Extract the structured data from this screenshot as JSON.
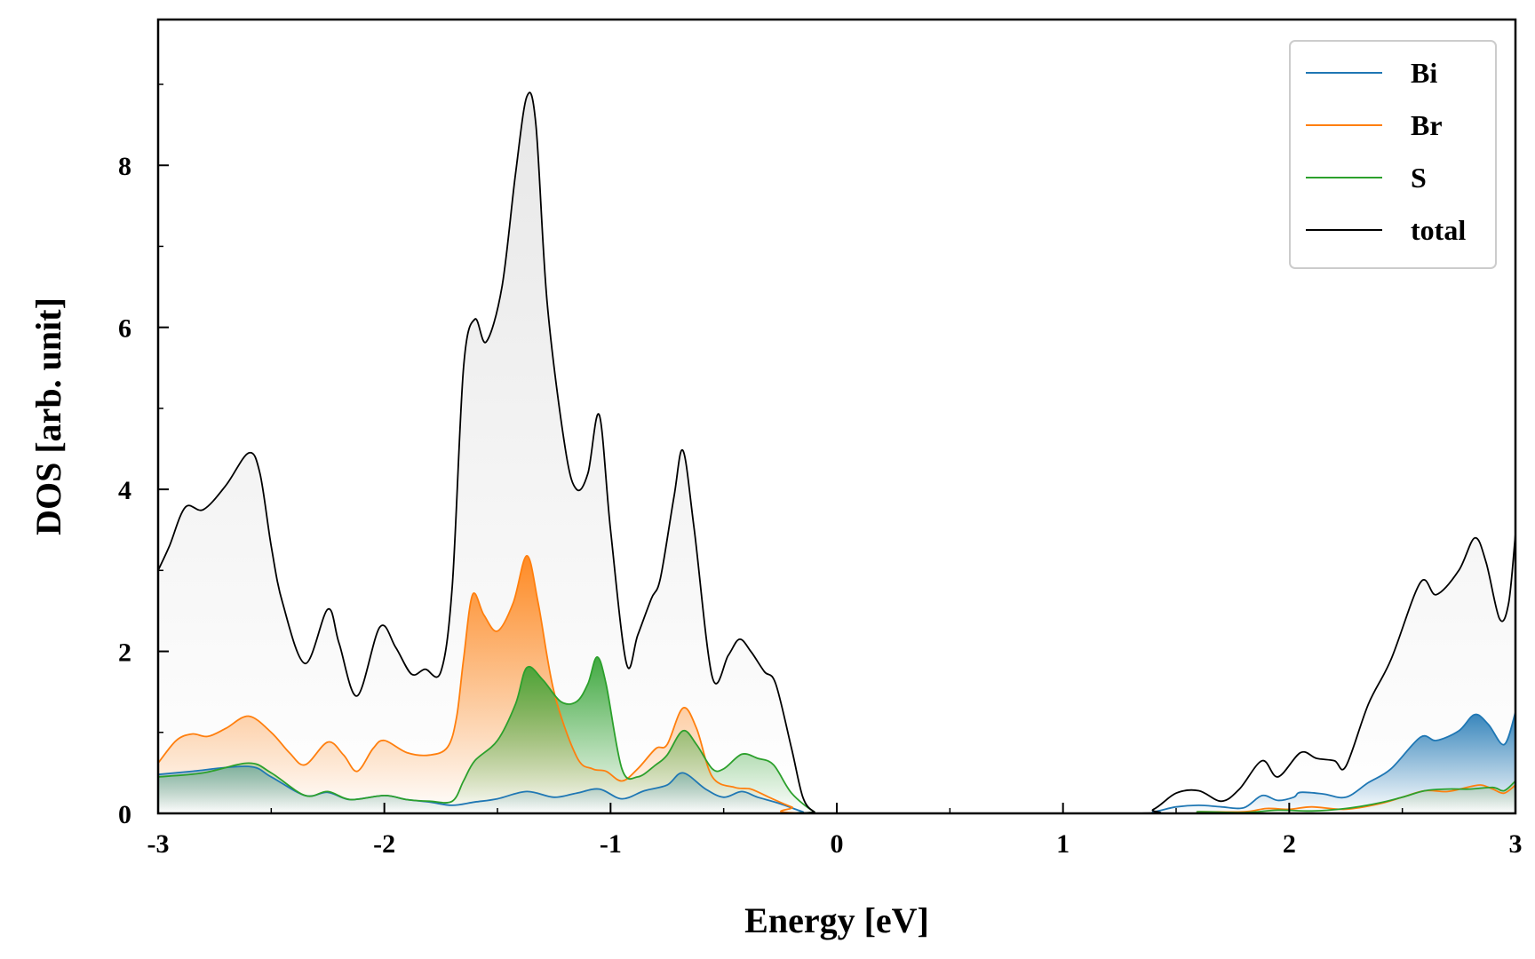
{
  "chart_data": {
    "type": "line",
    "title": "",
    "xlabel": "Energy [eV]",
    "ylabel": "DOS [arb. unit]",
    "xlim": [
      -3,
      3
    ],
    "ylim": [
      0,
      9.8
    ],
    "xticks": [
      -3,
      -2,
      -1,
      0,
      1,
      2,
      3
    ],
    "yticks": [
      0,
      2,
      4,
      6,
      8
    ],
    "grid": false,
    "legend_position": "top-right",
    "filled": true,
    "series": [
      {
        "name": "Bi",
        "color": "#1f77b4",
        "points": [
          [
            -3.0,
            0.48
          ],
          [
            -2.85,
            0.52
          ],
          [
            -2.6,
            0.58
          ],
          [
            -2.5,
            0.45
          ],
          [
            -2.35,
            0.22
          ],
          [
            -2.25,
            0.26
          ],
          [
            -2.15,
            0.17
          ],
          [
            -2.0,
            0.22
          ],
          [
            -1.9,
            0.17
          ],
          [
            -1.8,
            0.14
          ],
          [
            -1.7,
            0.1
          ],
          [
            -1.6,
            0.14
          ],
          [
            -1.5,
            0.18
          ],
          [
            -1.37,
            0.27
          ],
          [
            -1.25,
            0.2
          ],
          [
            -1.15,
            0.25
          ],
          [
            -1.05,
            0.3
          ],
          [
            -0.95,
            0.18
          ],
          [
            -0.85,
            0.28
          ],
          [
            -0.75,
            0.35
          ],
          [
            -0.68,
            0.5
          ],
          [
            -0.58,
            0.3
          ],
          [
            -0.5,
            0.2
          ],
          [
            -0.42,
            0.27
          ],
          [
            -0.35,
            0.2
          ],
          [
            -0.25,
            0.12
          ],
          [
            -0.15,
            0.02
          ],
          [
            -0.1,
            0.0
          ],
          [
            1.3,
            0.0
          ],
          [
            1.4,
            0.02
          ],
          [
            1.5,
            0.08
          ],
          [
            1.6,
            0.1
          ],
          [
            1.7,
            0.08
          ],
          [
            1.8,
            0.07
          ],
          [
            1.88,
            0.22
          ],
          [
            1.95,
            0.16
          ],
          [
            2.02,
            0.2
          ],
          [
            2.05,
            0.26
          ],
          [
            2.15,
            0.24
          ],
          [
            2.25,
            0.2
          ],
          [
            2.35,
            0.38
          ],
          [
            2.45,
            0.55
          ],
          [
            2.58,
            0.94
          ],
          [
            2.65,
            0.9
          ],
          [
            2.75,
            1.02
          ],
          [
            2.82,
            1.22
          ],
          [
            2.88,
            1.1
          ],
          [
            2.95,
            0.85
          ],
          [
            3.0,
            1.25
          ]
        ]
      },
      {
        "name": "Br",
        "color": "#ff7f0e",
        "points": [
          [
            -3.0,
            0.62
          ],
          [
            -2.92,
            0.9
          ],
          [
            -2.85,
            0.98
          ],
          [
            -2.78,
            0.95
          ],
          [
            -2.7,
            1.05
          ],
          [
            -2.6,
            1.2
          ],
          [
            -2.5,
            1.0
          ],
          [
            -2.42,
            0.75
          ],
          [
            -2.35,
            0.6
          ],
          [
            -2.25,
            0.88
          ],
          [
            -2.18,
            0.72
          ],
          [
            -2.12,
            0.52
          ],
          [
            -2.05,
            0.8
          ],
          [
            -2.0,
            0.9
          ],
          [
            -1.9,
            0.75
          ],
          [
            -1.8,
            0.72
          ],
          [
            -1.72,
            0.82
          ],
          [
            -1.68,
            1.2
          ],
          [
            -1.65,
            1.9
          ],
          [
            -1.61,
            2.7
          ],
          [
            -1.56,
            2.45
          ],
          [
            -1.5,
            2.25
          ],
          [
            -1.43,
            2.6
          ],
          [
            -1.37,
            3.18
          ],
          [
            -1.32,
            2.6
          ],
          [
            -1.25,
            1.5
          ],
          [
            -1.15,
            0.7
          ],
          [
            -1.08,
            0.55
          ],
          [
            -1.02,
            0.52
          ],
          [
            -0.95,
            0.4
          ],
          [
            -0.88,
            0.55
          ],
          [
            -0.8,
            0.8
          ],
          [
            -0.75,
            0.85
          ],
          [
            -0.68,
            1.3
          ],
          [
            -0.62,
            1.05
          ],
          [
            -0.55,
            0.45
          ],
          [
            -0.45,
            0.32
          ],
          [
            -0.38,
            0.3
          ],
          [
            -0.3,
            0.2
          ],
          [
            -0.2,
            0.08
          ],
          [
            -0.1,
            0.0
          ],
          [
            1.5,
            0.0
          ],
          [
            1.6,
            0.02
          ],
          [
            1.8,
            0.02
          ],
          [
            1.9,
            0.06
          ],
          [
            2.0,
            0.05
          ],
          [
            2.1,
            0.08
          ],
          [
            2.25,
            0.05
          ],
          [
            2.4,
            0.12
          ],
          [
            2.5,
            0.2
          ],
          [
            2.6,
            0.28
          ],
          [
            2.7,
            0.27
          ],
          [
            2.8,
            0.33
          ],
          [
            2.85,
            0.35
          ],
          [
            2.9,
            0.3
          ],
          [
            2.95,
            0.25
          ],
          [
            3.0,
            0.35
          ]
        ]
      },
      {
        "name": "S",
        "color": "#2ca02c",
        "points": [
          [
            -3.0,
            0.45
          ],
          [
            -2.8,
            0.5
          ],
          [
            -2.6,
            0.62
          ],
          [
            -2.5,
            0.5
          ],
          [
            -2.35,
            0.22
          ],
          [
            -2.25,
            0.27
          ],
          [
            -2.15,
            0.17
          ],
          [
            -2.0,
            0.22
          ],
          [
            -1.9,
            0.17
          ],
          [
            -1.8,
            0.15
          ],
          [
            -1.7,
            0.15
          ],
          [
            -1.65,
            0.4
          ],
          [
            -1.6,
            0.65
          ],
          [
            -1.5,
            0.9
          ],
          [
            -1.42,
            1.35
          ],
          [
            -1.37,
            1.8
          ],
          [
            -1.3,
            1.65
          ],
          [
            -1.22,
            1.38
          ],
          [
            -1.15,
            1.38
          ],
          [
            -1.1,
            1.6
          ],
          [
            -1.06,
            1.93
          ],
          [
            -1.02,
            1.6
          ],
          [
            -0.95,
            0.55
          ],
          [
            -0.88,
            0.45
          ],
          [
            -0.8,
            0.6
          ],
          [
            -0.75,
            0.72
          ],
          [
            -0.68,
            1.02
          ],
          [
            -0.62,
            0.85
          ],
          [
            -0.55,
            0.55
          ],
          [
            -0.5,
            0.55
          ],
          [
            -0.42,
            0.73
          ],
          [
            -0.35,
            0.68
          ],
          [
            -0.28,
            0.6
          ],
          [
            -0.2,
            0.25
          ],
          [
            -0.1,
            0.02
          ],
          [
            -0.05,
            0.0
          ],
          [
            1.5,
            0.0
          ],
          [
            1.6,
            0.02
          ],
          [
            1.8,
            0.01
          ],
          [
            1.95,
            0.04
          ],
          [
            2.1,
            0.03
          ],
          [
            2.25,
            0.06
          ],
          [
            2.4,
            0.13
          ],
          [
            2.5,
            0.2
          ],
          [
            2.6,
            0.28
          ],
          [
            2.7,
            0.3
          ],
          [
            2.8,
            0.3
          ],
          [
            2.9,
            0.32
          ],
          [
            2.95,
            0.28
          ],
          [
            3.0,
            0.4
          ]
        ]
      },
      {
        "name": "total",
        "color": "#000000",
        "points": [
          [
            -3.0,
            3.0
          ],
          [
            -2.95,
            3.3
          ],
          [
            -2.88,
            3.78
          ],
          [
            -2.8,
            3.75
          ],
          [
            -2.7,
            4.05
          ],
          [
            -2.6,
            4.45
          ],
          [
            -2.55,
            4.2
          ],
          [
            -2.5,
            3.3
          ],
          [
            -2.45,
            2.6
          ],
          [
            -2.35,
            1.85
          ],
          [
            -2.25,
            2.52
          ],
          [
            -2.2,
            2.1
          ],
          [
            -2.12,
            1.45
          ],
          [
            -2.02,
            2.3
          ],
          [
            -1.95,
            2.05
          ],
          [
            -1.88,
            1.72
          ],
          [
            -1.82,
            1.78
          ],
          [
            -1.75,
            1.75
          ],
          [
            -1.7,
            2.8
          ],
          [
            -1.65,
            5.5
          ],
          [
            -1.6,
            6.1
          ],
          [
            -1.55,
            5.82
          ],
          [
            -1.48,
            6.5
          ],
          [
            -1.42,
            7.9
          ],
          [
            -1.37,
            8.85
          ],
          [
            -1.33,
            8.5
          ],
          [
            -1.28,
            6.3
          ],
          [
            -1.2,
            4.5
          ],
          [
            -1.15,
            4.0
          ],
          [
            -1.1,
            4.2
          ],
          [
            -1.05,
            4.92
          ],
          [
            -1.0,
            3.5
          ],
          [
            -0.93,
            1.85
          ],
          [
            -0.88,
            2.2
          ],
          [
            -0.82,
            2.65
          ],
          [
            -0.78,
            2.9
          ],
          [
            -0.72,
            3.9
          ],
          [
            -0.68,
            4.48
          ],
          [
            -0.63,
            3.5
          ],
          [
            -0.55,
            1.68
          ],
          [
            -0.48,
            1.95
          ],
          [
            -0.43,
            2.15
          ],
          [
            -0.38,
            2.0
          ],
          [
            -0.32,
            1.75
          ],
          [
            -0.27,
            1.6
          ],
          [
            -0.2,
            0.8
          ],
          [
            -0.15,
            0.2
          ],
          [
            -0.1,
            0.02
          ],
          [
            -0.05,
            0.0
          ],
          [
            1.3,
            0.0
          ],
          [
            1.4,
            0.05
          ],
          [
            1.5,
            0.25
          ],
          [
            1.6,
            0.28
          ],
          [
            1.7,
            0.15
          ],
          [
            1.78,
            0.3
          ],
          [
            1.88,
            0.65
          ],
          [
            1.95,
            0.45
          ],
          [
            2.05,
            0.75
          ],
          [
            2.12,
            0.68
          ],
          [
            2.2,
            0.65
          ],
          [
            2.25,
            0.58
          ],
          [
            2.35,
            1.35
          ],
          [
            2.45,
            1.9
          ],
          [
            2.58,
            2.85
          ],
          [
            2.65,
            2.7
          ],
          [
            2.75,
            3.0
          ],
          [
            2.82,
            3.4
          ],
          [
            2.87,
            3.1
          ],
          [
            2.93,
            2.4
          ],
          [
            2.97,
            2.6
          ],
          [
            3.0,
            3.45
          ]
        ]
      }
    ]
  }
}
